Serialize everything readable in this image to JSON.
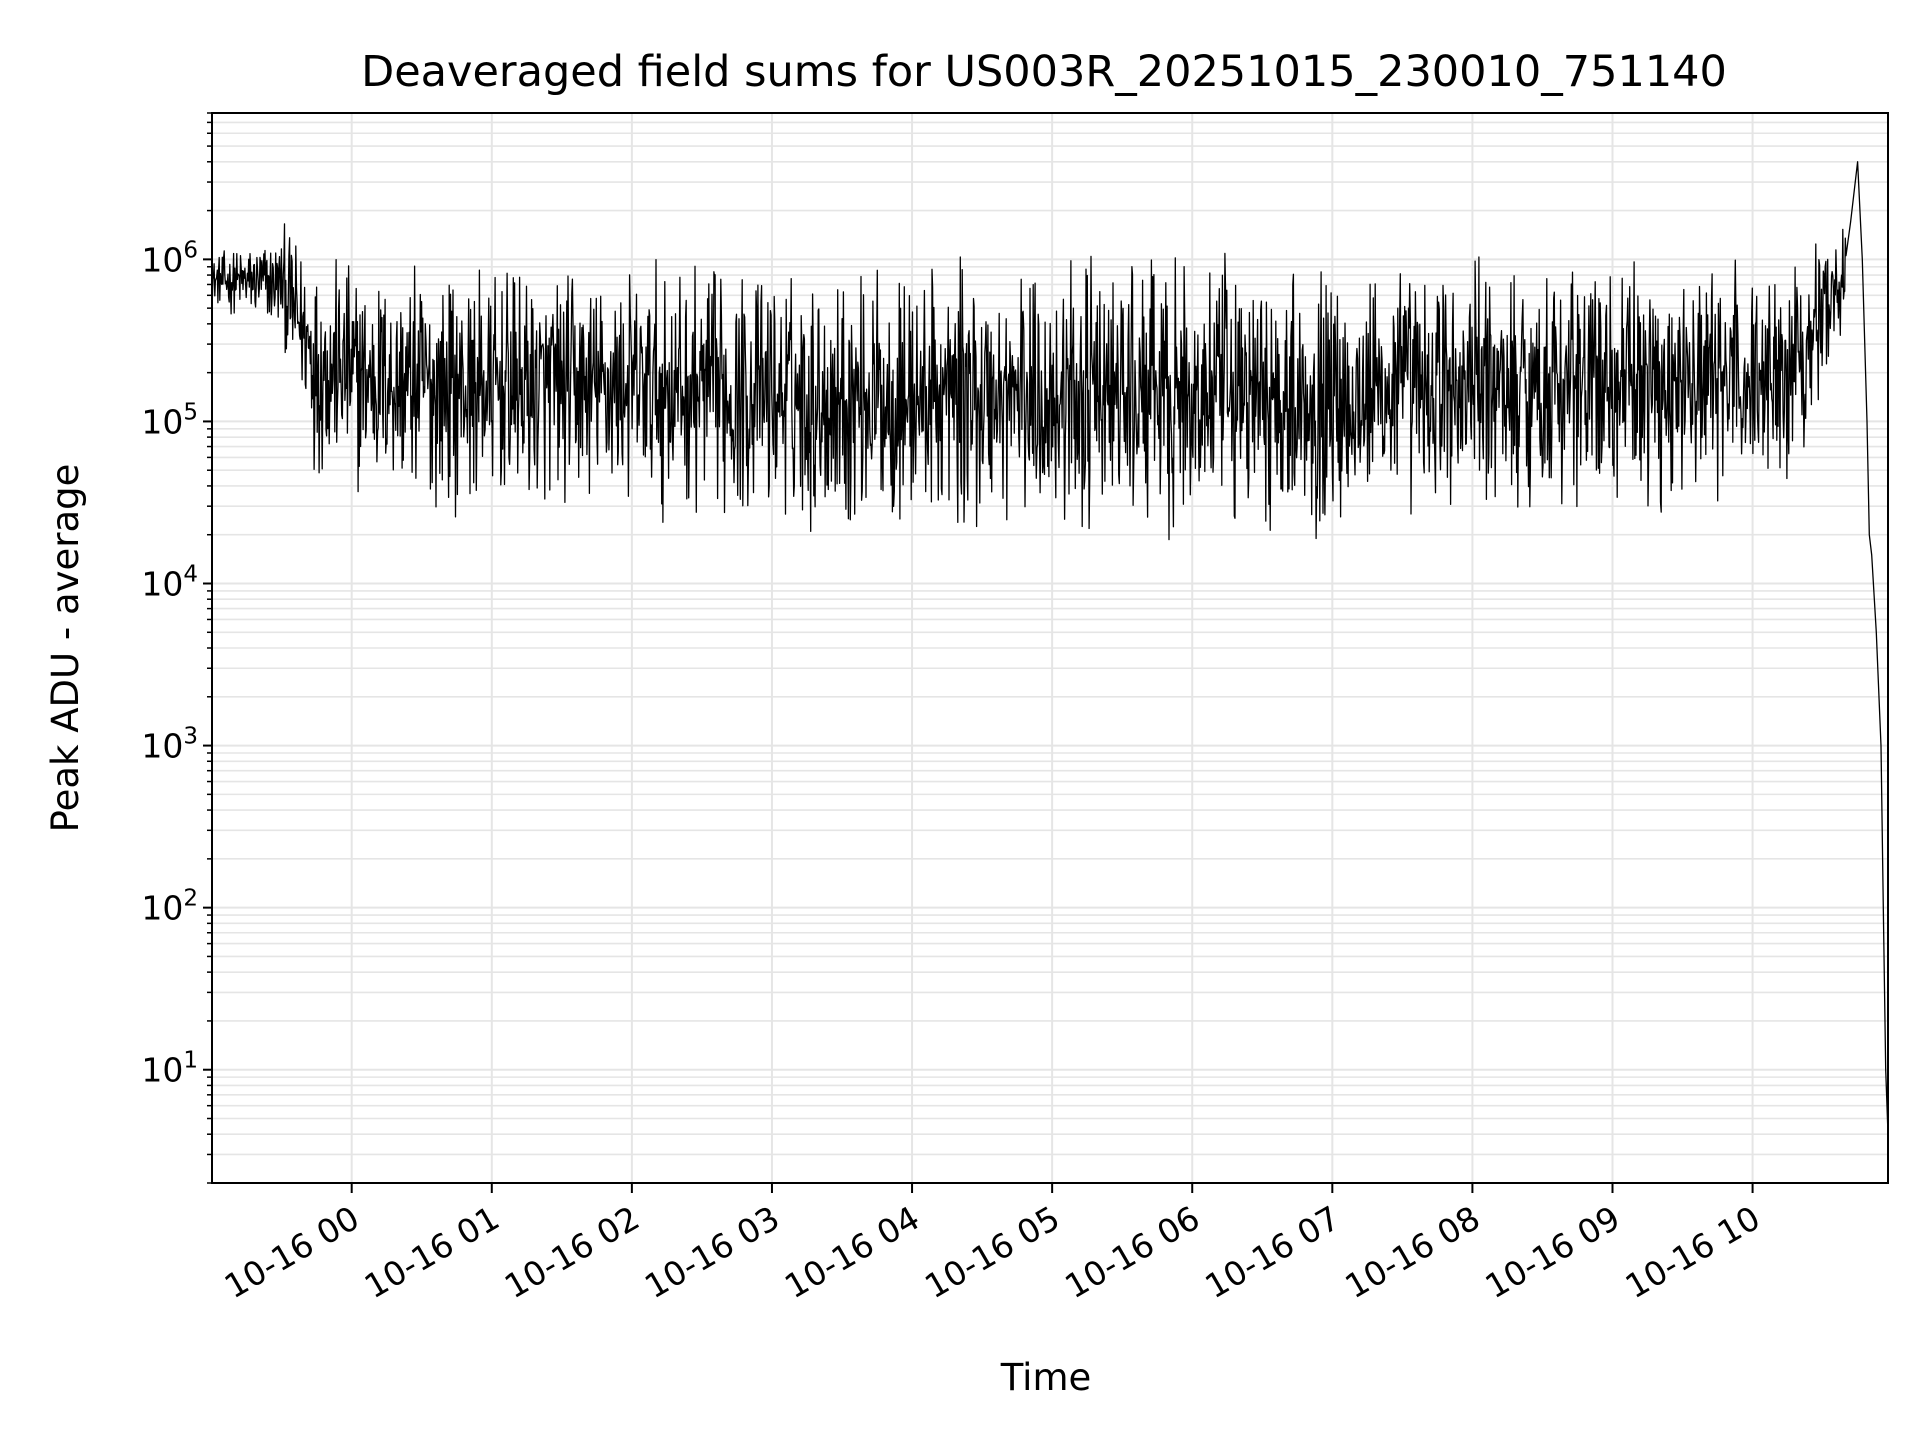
{
  "chart_data": {
    "type": "line",
    "title": "Deaveraged field sums for US003R_20251015_230010_751140",
    "xlabel": "Time",
    "ylabel": "Peak ADU - average",
    "yscale": "log",
    "ylim": [
      2,
      8000000
    ],
    "xlim": [
      "2025-10-15T23:00:10",
      "2025-10-16T10:58:00"
    ],
    "x_ticks": [
      {
        "t": "2025-10-16T00:00",
        "label": "10-16 00"
      },
      {
        "t": "2025-10-16T01:00",
        "label": "10-16 01"
      },
      {
        "t": "2025-10-16T02:00",
        "label": "10-16 02"
      },
      {
        "t": "2025-10-16T03:00",
        "label": "10-16 03"
      },
      {
        "t": "2025-10-16T04:00",
        "label": "10-16 04"
      },
      {
        "t": "2025-10-16T05:00",
        "label": "10-16 05"
      },
      {
        "t": "2025-10-16T06:00",
        "label": "10-16 06"
      },
      {
        "t": "2025-10-16T07:00",
        "label": "10-16 07"
      },
      {
        "t": "2025-10-16T08:00",
        "label": "10-16 08"
      },
      {
        "t": "2025-10-16T09:00",
        "label": "10-16 09"
      },
      {
        "t": "2025-10-16T10:00",
        "label": "10-16 10"
      }
    ],
    "y_ticks": [
      {
        "value": 10,
        "base": "10",
        "exp": "1"
      },
      {
        "value": 100,
        "base": "10",
        "exp": "2"
      },
      {
        "value": 1000,
        "base": "10",
        "exp": "3"
      },
      {
        "value": 10000,
        "base": "10",
        "exp": "4"
      },
      {
        "value": 100000,
        "base": "10",
        "exp": "5"
      },
      {
        "value": 1000000,
        "base": "10",
        "exp": "6"
      }
    ],
    "grid": true,
    "line_color": "#000000",
    "grid_color": "#e5e5e5",
    "series": [
      {
        "envelope": {
          "x": [
            "2025-10-15T23:00",
            "2025-10-15T23:30",
            "2025-10-15T23:45",
            "2025-10-16T00:00",
            "2025-10-16T00:30",
            "2025-10-16T01:00",
            "2025-10-16T01:30",
            "2025-10-16T02:00",
            "2025-10-16T02:30",
            "2025-10-16T03:00",
            "2025-10-16T03:30",
            "2025-10-16T04:00",
            "2025-10-16T04:30",
            "2025-10-16T05:00",
            "2025-10-16T05:30",
            "2025-10-16T06:00",
            "2025-10-16T06:30",
            "2025-10-16T07:00",
            "2025-10-16T07:30",
            "2025-10-16T08:00",
            "2025-10-16T08:30",
            "2025-10-16T09:00",
            "2025-10-16T09:30",
            "2025-10-16T10:00",
            "2025-10-16T10:20",
            "2025-10-16T10:40"
          ],
          "low": [
            500000,
            300000,
            40000,
            30000,
            25000,
            25000,
            24000,
            24000,
            22000,
            20000,
            18000,
            18000,
            18000,
            18000,
            17000,
            17000,
            17000,
            18000,
            20000,
            22000,
            24000,
            25000,
            26000,
            30000,
            50000,
            400000
          ],
          "high": [
            1100000,
            1700000,
            1400000,
            1200000,
            1100000,
            1000000,
            1050000,
            1100000,
            1100000,
            1100000,
            1100000,
            1100000,
            1150000,
            1150000,
            1150000,
            1150000,
            1150000,
            1150000,
            1200000,
            1200000,
            1200000,
            1150000,
            1100000,
            1100000,
            1400000,
            1800000
          ]
        },
        "tail": {
          "x": [
            "2025-10-16T10:42",
            "2025-10-16T10:45",
            "2025-10-16T10:47",
            "2025-10-16T10:49",
            "2025-10-16T10:50",
            "2025-10-16T10:51",
            "2025-10-16T10:53",
            "2025-10-16T10:55",
            "2025-10-16T10:56",
            "2025-10-16T10:57",
            "2025-10-16T10:58"
          ],
          "y": [
            1700000,
            4000000,
            1000000,
            100000,
            20000,
            15000,
            5000,
            1000,
            100,
            10,
            4
          ]
        }
      }
    ]
  }
}
